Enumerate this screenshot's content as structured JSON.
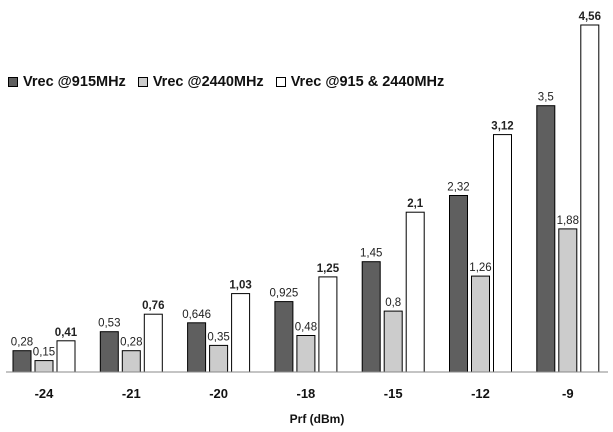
{
  "chart_data": {
    "type": "bar",
    "categories": [
      "-24",
      "-21",
      "-20",
      "-18",
      "-15",
      "-12",
      "-9"
    ],
    "series": [
      {
        "name": "Vrec @915MHz",
        "values": [
          0.28,
          0.53,
          0.646,
          0.925,
          1.45,
          2.32,
          3.5
        ],
        "labels": [
          "0,28",
          "0,53",
          "0,646",
          "0,925",
          "1,45",
          "2,32",
          "3,5"
        ],
        "color": "#5f5f5f",
        "label_bold": false
      },
      {
        "name": "Vrec @2440MHz",
        "values": [
          0.15,
          0.28,
          0.35,
          0.48,
          0.8,
          1.26,
          1.88
        ],
        "labels": [
          "0,15",
          "0,28",
          "0,35",
          "0,48",
          "0,8",
          "1,26",
          "1,88"
        ],
        "color": "#cccccc",
        "label_bold": false
      },
      {
        "name": "Vrec @915 & 2440MHz",
        "values": [
          0.41,
          0.76,
          1.03,
          1.25,
          2.1,
          3.12,
          4.56
        ],
        "labels": [
          "0,41",
          "0,76",
          "1,03",
          "1,25",
          "2,1",
          "3,12",
          "4,56"
        ],
        "color": "#ffffff",
        "label_bold": true
      }
    ],
    "title": "",
    "xlabel": "Prf (dBm)",
    "ylabel": "",
    "ylim": [
      0,
      4.56
    ],
    "grid": false,
    "legend_position": "top-left"
  }
}
